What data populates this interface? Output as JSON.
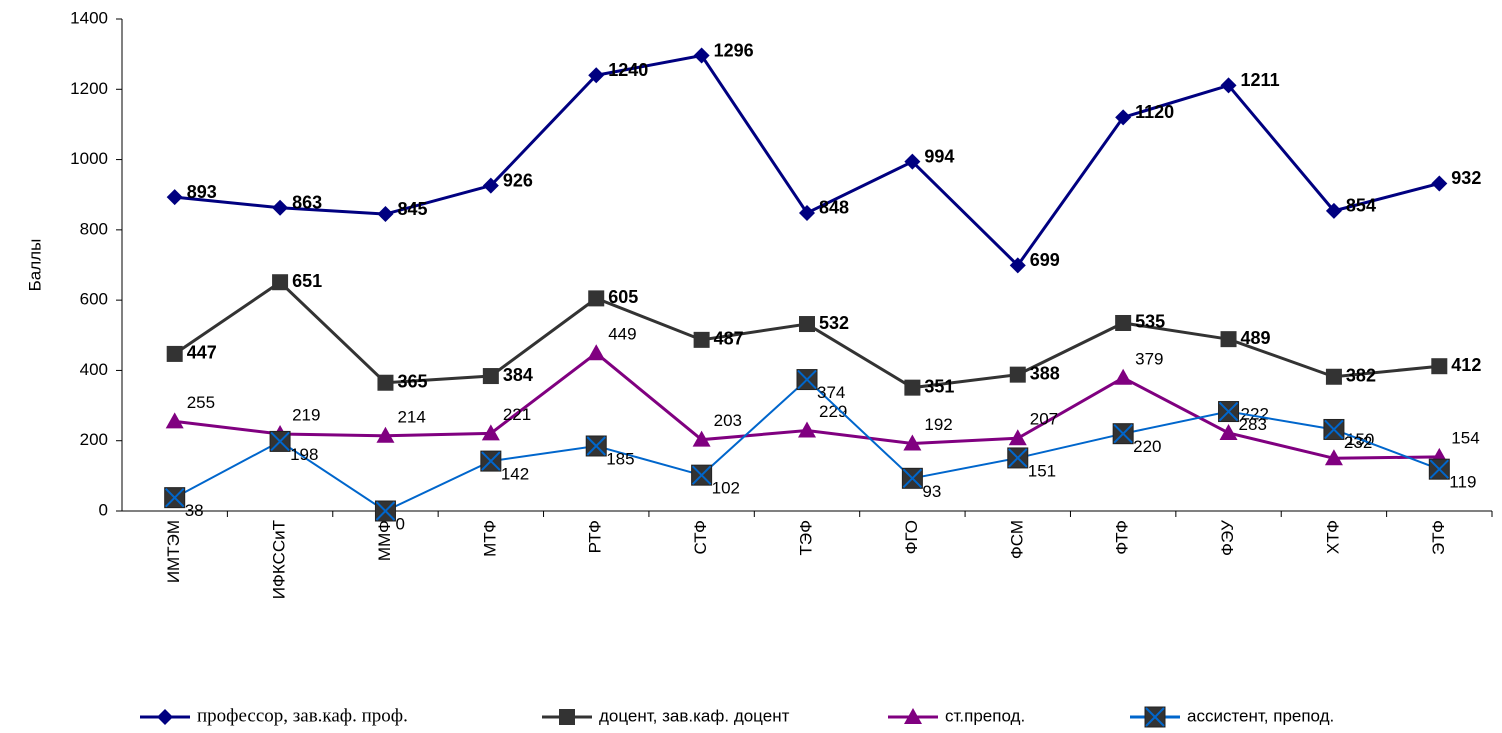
{
  "chart_data": {
    "type": "line",
    "y_label": "Баллы",
    "categories": [
      "ИМТЭМ",
      "ИФКССиТ",
      "ММФ",
      "МТФ",
      "РТФ",
      "СТФ",
      "ТЭФ",
      "ФГО",
      "ФСМ",
      "ФТФ",
      "ФЭУ",
      "ХТФ",
      "ЭТФ"
    ],
    "ylim": [
      0,
      1400
    ],
    "yticks": [
      0,
      200,
      400,
      600,
      800,
      1000,
      1200,
      1400
    ],
    "grid": false,
    "legend": "bottom",
    "series": [
      {
        "name": "профессор, зав.каф. проф.",
        "color": "#000080",
        "marker": "diamond",
        "values": [
          893,
          863,
          845,
          926,
          1240,
          1296,
          848,
          994,
          699,
          1120,
          1211,
          854,
          932
        ]
      },
      {
        "name": "доцент, зав.каф. доцент",
        "color": "#333333",
        "marker": "square",
        "values": [
          447,
          651,
          365,
          384,
          605,
          487,
          532,
          351,
          388,
          535,
          489,
          382,
          412
        ]
      },
      {
        "name": "ст.препод.",
        "color": "#800080",
        "marker": "triangle",
        "values": [
          255,
          219,
          214,
          221,
          449,
          203,
          229,
          192,
          207,
          379,
          222,
          150,
          154
        ]
      },
      {
        "name": "ассистент, препод.",
        "color": "#0066cc",
        "marker": "xsquare",
        "values": [
          38,
          198,
          0,
          142,
          185,
          102,
          374,
          93,
          151,
          220,
          283,
          232,
          119
        ]
      }
    ]
  }
}
